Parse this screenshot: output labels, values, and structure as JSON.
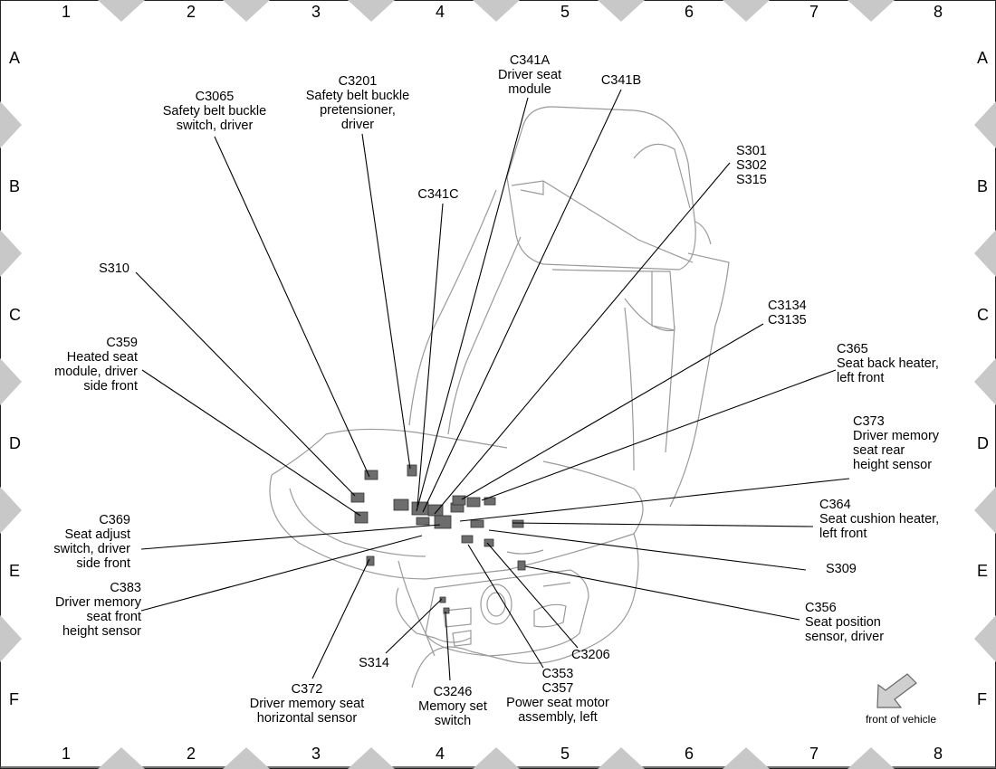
{
  "grid": {
    "columns": [
      "1",
      "2",
      "3",
      "4",
      "5",
      "6",
      "7",
      "8"
    ],
    "rows": [
      "A",
      "B",
      "C",
      "D",
      "E",
      "F"
    ]
  },
  "labels": [
    {
      "id": "c3065",
      "lines": [
        "C3065",
        "Safety belt buckle",
        "switch, driver"
      ]
    },
    {
      "id": "c3201",
      "lines": [
        "C3201",
        "Safety belt buckle",
        "pretensioner,",
        "driver"
      ]
    },
    {
      "id": "c341a",
      "lines": [
        "C341A",
        "Driver seat",
        "module"
      ]
    },
    {
      "id": "c341b",
      "lines": [
        "C341B"
      ]
    },
    {
      "id": "c341c",
      "lines": [
        "C341C"
      ]
    },
    {
      "id": "s301",
      "lines": [
        "S301",
        "S302",
        "S315"
      ]
    },
    {
      "id": "s310",
      "lines": [
        "S310"
      ]
    },
    {
      "id": "c3134",
      "lines": [
        "C3134",
        "C3135"
      ]
    },
    {
      "id": "c359",
      "lines": [
        "C359",
        "Heated seat",
        "module, driver",
        "side front"
      ]
    },
    {
      "id": "c365",
      "lines": [
        "C365",
        "Seat back heater,",
        "left front"
      ]
    },
    {
      "id": "c373",
      "lines": [
        "C373",
        "Driver memory",
        "seat rear",
        "height sensor"
      ]
    },
    {
      "id": "c364",
      "lines": [
        "C364",
        "Seat cushion heater,",
        "left front"
      ]
    },
    {
      "id": "c369",
      "lines": [
        "C369",
        "Seat adjust",
        "switch, driver",
        "side front"
      ]
    },
    {
      "id": "s309",
      "lines": [
        "S309"
      ]
    },
    {
      "id": "c383",
      "lines": [
        "C383",
        "Driver memory",
        "seat front",
        "height sensor"
      ]
    },
    {
      "id": "c356",
      "lines": [
        "C356",
        "Seat position",
        "sensor, driver"
      ]
    },
    {
      "id": "c3206",
      "lines": [
        "C3206"
      ]
    },
    {
      "id": "s314",
      "lines": [
        "S314"
      ]
    },
    {
      "id": "c353",
      "lines": [
        "C353",
        "C357",
        "Power seat motor",
        "assembly, left"
      ]
    },
    {
      "id": "c372",
      "lines": [
        "C372",
        "Driver memory seat",
        "horizontal sensor"
      ]
    },
    {
      "id": "c3246",
      "lines": [
        "C3246",
        "Memory set",
        "switch"
      ]
    }
  ],
  "front_of_vehicle": "front of vehicle"
}
